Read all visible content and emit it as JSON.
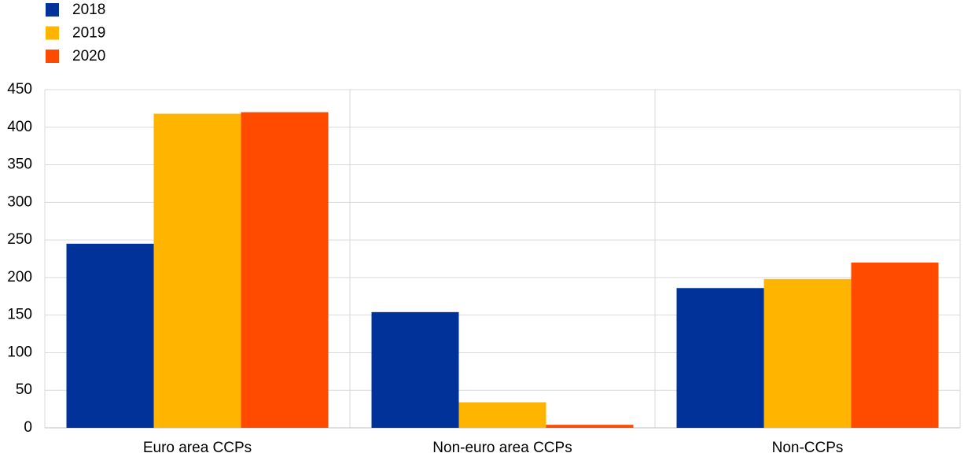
{
  "chart_data": {
    "type": "bar",
    "categories": [
      "Euro area CCPs",
      "Non-euro area CCPs",
      "Non-CCPs"
    ],
    "series": [
      {
        "name": "2018",
        "color": "#003299",
        "values": [
          245,
          154,
          186
        ]
      },
      {
        "name": "2019",
        "color": "#ffb400",
        "values": [
          418,
          34,
          198
        ]
      },
      {
        "name": "2020",
        "color": "#ff4b00",
        "values": [
          420,
          4,
          220
        ]
      }
    ],
    "ylim": [
      0,
      450
    ],
    "yticks": [
      0,
      50,
      100,
      150,
      200,
      250,
      300,
      350,
      400,
      450
    ],
    "grid": true,
    "legend": "top-left"
  }
}
